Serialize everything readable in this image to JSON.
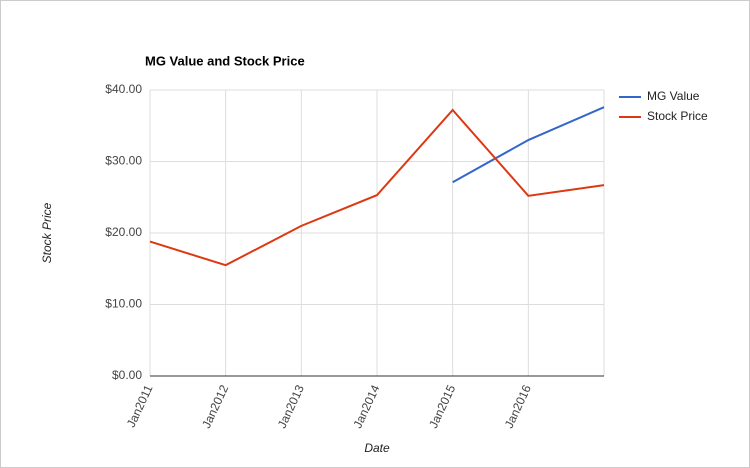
{
  "chart_data": {
    "type": "line",
    "title": "MG Value and Stock Price",
    "x_label": "Date",
    "y_label": "Stock Price",
    "categories": [
      "Jan2011",
      "Jan2012",
      "Jan2013",
      "Jan2014",
      "Jan2015",
      "Jan2016",
      null
    ],
    "series": [
      {
        "name": "MG Value",
        "color": "#3366cc",
        "values": [
          null,
          null,
          null,
          null,
          27.1,
          33.0,
          37.6
        ]
      },
      {
        "name": "Stock Price",
        "color": "#dc3912",
        "values": [
          18.8,
          15.5,
          21.0,
          25.3,
          37.2,
          25.2,
          26.7
        ]
      }
    ],
    "ylim": [
      0,
      40
    ],
    "yticks": [
      {
        "value": 0,
        "label": "$0.00"
      },
      {
        "value": 10,
        "label": "$10.00"
      },
      {
        "value": 20,
        "label": "$20.00"
      },
      {
        "value": 30,
        "label": "$30.00"
      },
      {
        "value": 40,
        "label": "$40.00"
      }
    ],
    "grid": true,
    "legend": "right"
  }
}
